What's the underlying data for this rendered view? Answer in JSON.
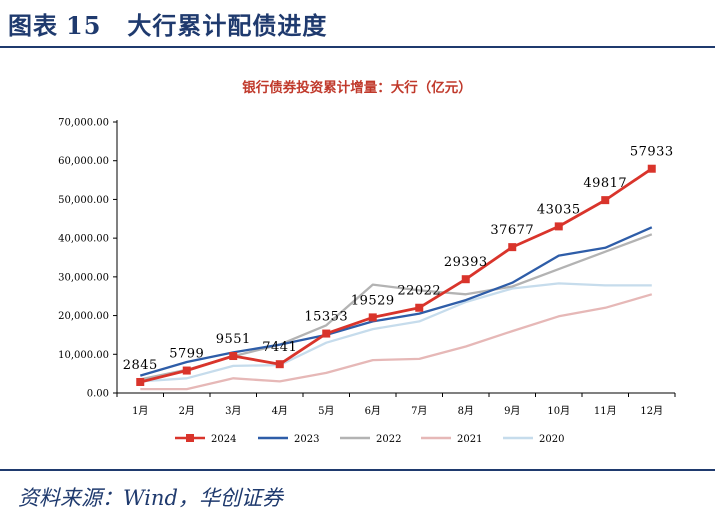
{
  "figure": {
    "label": "图表",
    "number": "15",
    "title": "大行累计配债进度"
  },
  "source": "资料来源：Wind，华创证券",
  "colors": {
    "title": "#1f3a6e",
    "chart_title": "#c0392b",
    "s2024": "#d9342b",
    "s2023": "#2e5da8",
    "s2022": "#b3b3b3",
    "s2021": "#e6b8b7",
    "s2020": "#c6dcec"
  },
  "chart_data": {
    "type": "line",
    "title": "银行债券投资累计增量：大行（亿元）",
    "categories": [
      "1月",
      "2月",
      "3月",
      "4月",
      "5月",
      "6月",
      "7月",
      "8月",
      "9月",
      "10月",
      "11月",
      "12月"
    ],
    "ylim": [
      0,
      70000
    ],
    "yticks": [
      "0.00",
      "10,000.00",
      "20,000.00",
      "30,000.00",
      "40,000.00",
      "50,000.00",
      "60,000.00",
      "70,000.00"
    ],
    "grid": false,
    "legend_position": "bottom",
    "series": [
      {
        "name": "2024",
        "key": "s2024",
        "marker": "square",
        "values": [
          2845,
          5799,
          9551,
          7441,
          15353,
          19529,
          22022,
          29393,
          37677,
          43035,
          49817,
          57933
        ],
        "labels": [
          "2845",
          "5799",
          "9551",
          "7441",
          "15353",
          "19529",
          "22022",
          "29393",
          "37677",
          "43035",
          "49817",
          "57933"
        ]
      },
      {
        "name": "2023",
        "key": "s2023",
        "marker": "none",
        "values": [
          4500,
          8000,
          10500,
          12500,
          15000,
          18500,
          20500,
          24000,
          28500,
          35500,
          37500,
          42800
        ]
      },
      {
        "name": "2022",
        "key": "s2022",
        "marker": "none",
        "values": [
          3500,
          6000,
          9500,
          12500,
          17500,
          28000,
          26500,
          25500,
          27500,
          32000,
          36500,
          41000
        ]
      },
      {
        "name": "2021",
        "key": "s2021",
        "marker": "none",
        "values": [
          1000,
          1000,
          3800,
          3000,
          5200,
          8500,
          8800,
          12000,
          16000,
          19800,
          22000,
          25500
        ]
      },
      {
        "name": "2020",
        "key": "s2020",
        "marker": "none",
        "values": [
          3000,
          3800,
          7000,
          7200,
          13000,
          16500,
          18500,
          23500,
          27000,
          28300,
          27800,
          27800
        ]
      }
    ]
  }
}
